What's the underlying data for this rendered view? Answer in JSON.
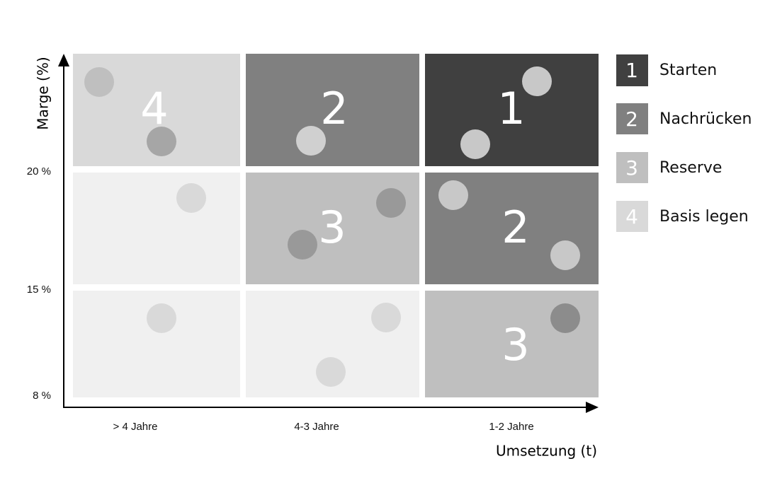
{
  "y_axis": {
    "label": "Marge (%)",
    "ticks": [
      "20 %",
      "15 %",
      "8 %"
    ]
  },
  "x_axis": {
    "label": "Umsetzung (t)",
    "categories": [
      "> 4 Jahre",
      "4-3 Jahre",
      "1-2 Jahre"
    ]
  },
  "cells": [
    [
      "4",
      "2",
      "1"
    ],
    [
      null,
      "3",
      "2"
    ],
    [
      null,
      null,
      "3"
    ]
  ],
  "legend": [
    {
      "number": "1",
      "label": "Starten"
    },
    {
      "number": "2",
      "label": "Nachrücken"
    },
    {
      "number": "3",
      "label": "Reserve"
    },
    {
      "number": "4",
      "label": "Basis legen"
    }
  ]
}
